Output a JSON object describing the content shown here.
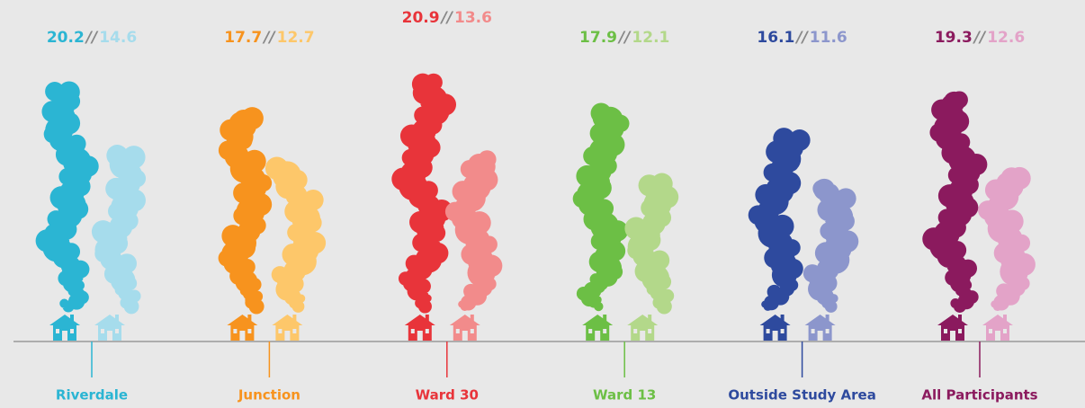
{
  "chart_data": {
    "type": "pictogram",
    "categories": [
      "Riverdale",
      "Junction",
      "Ward 30",
      "Ward 13",
      "Outside Study Area",
      "All Participants"
    ],
    "separator": "//",
    "series": [
      {
        "values": [
          20.2,
          17.7,
          20.9,
          17.9,
          16.1,
          19.3
        ],
        "colors": [
          "#2bb5d3",
          "#f7931e",
          "#e8343a",
          "#6cbf45",
          "#2e4a9e",
          "#8b1a5e"
        ]
      },
      {
        "values": [
          14.6,
          12.7,
          13.6,
          12.1,
          11.6,
          12.6
        ],
        "colors": [
          "#a6dcec",
          "#fdc76a",
          "#f28b8b",
          "#b3d88a",
          "#8c96cc",
          "#e3a3c8"
        ]
      }
    ]
  }
}
